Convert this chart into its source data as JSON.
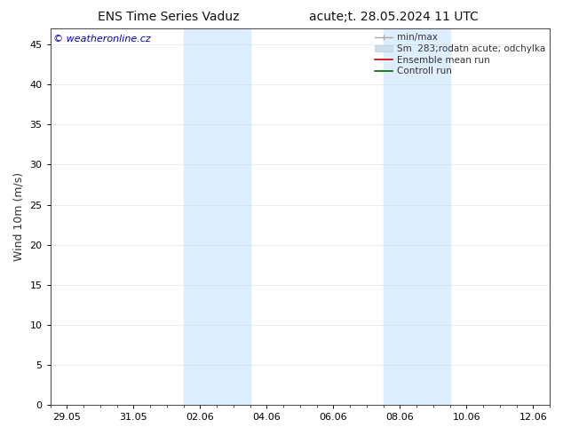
{
  "title_left": "ENS Time Series Vaduz",
  "title_right": "acute;t. 28.05.2024 11 UTC",
  "ylabel": "Wind 10m (m/s)",
  "ylim": [
    0,
    47
  ],
  "yticks": [
    0,
    5,
    10,
    15,
    20,
    25,
    30,
    35,
    40,
    45
  ],
  "xlabel_dates": [
    "29.05",
    "31.05",
    "02.06",
    "04.06",
    "06.06",
    "08.06",
    "10.06",
    "12.06"
  ],
  "x_values": [
    0,
    2,
    4,
    6,
    8,
    10,
    12,
    14
  ],
  "x_min": -0.5,
  "x_max": 14.5,
  "watermark": "© weatheronline.cz",
  "watermark_color": "#0000bb",
  "background_color": "#ffffff",
  "plot_bg_color": "#ffffff",
  "shaded_regions": [
    {
      "x_start": 3.5,
      "x_end": 5.5,
      "color": "#ddeeff"
    },
    {
      "x_start": 9.5,
      "x_end": 11.5,
      "color": "#ddeeff"
    }
  ],
  "legend_entries": [
    {
      "label": "min/max"
    },
    {
      "label": "Sm  283;rodatn acute; odchylka"
    },
    {
      "label": "Ensemble mean run"
    },
    {
      "label": "Controll run"
    }
  ],
  "tick_fontsize": 8,
  "label_fontsize": 9,
  "title_fontsize": 10,
  "watermark_fontsize": 8,
  "legend_fontsize": 7.5,
  "grid_color": "#cccccc",
  "grid_alpha": 0.5,
  "spine_color": "#444444"
}
